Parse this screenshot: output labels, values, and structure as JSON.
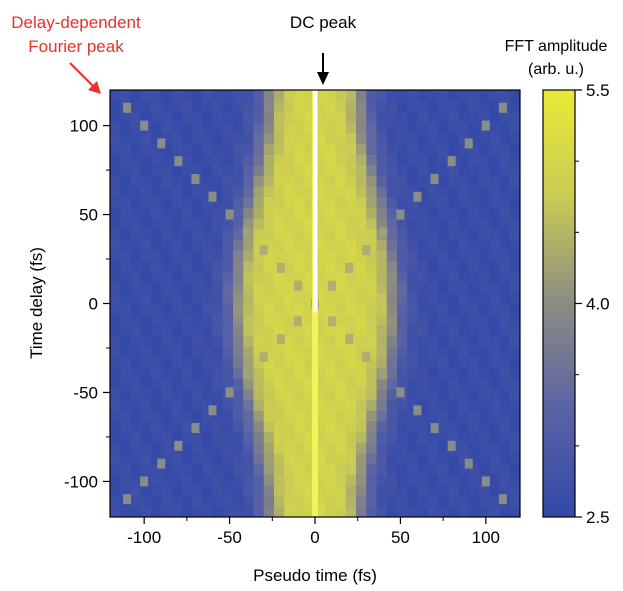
{
  "chart_data": {
    "type": "heatmap",
    "xlabel": "Pseudo time (fs)",
    "ylabel": "Time delay (fs)",
    "xlim": [
      -120,
      120
    ],
    "ylim": [
      -120,
      120
    ],
    "x_ticks": [
      -100,
      -50,
      0,
      50,
      100
    ],
    "y_ticks": [
      100,
      50,
      0,
      -50,
      -100
    ],
    "colorbar": {
      "title_line1": "FFT amplitude",
      "title_line2": "(arb. u.)",
      "range": [
        2.5,
        5.5
      ],
      "ticks": [
        5.5,
        4.0,
        2.5
      ],
      "colors": [
        "#3349a8",
        "#5a62a6",
        "#8c8c82",
        "#c9cb55",
        "#eaea36"
      ]
    },
    "annotations": {
      "dc_peak": {
        "text": "DC peak",
        "x": 0,
        "y": 120
      },
      "delay_peak": {
        "line1": "Delay-dependent",
        "line2": "Fourier peak",
        "color": "#e8312d",
        "x": -120,
        "y": 120
      }
    },
    "features": {
      "dc_peak_x": 0,
      "bright_band_halfwidth_fs": 45,
      "delay_dependent_peak": "x = ±delay (diagonal)"
    }
  }
}
